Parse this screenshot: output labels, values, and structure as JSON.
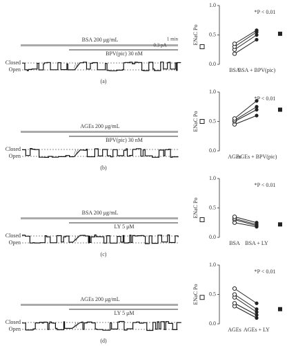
{
  "chart_data": [
    {
      "type": "paired",
      "ylabel": "ENaC Po",
      "annotation": "*P < 0.01",
      "categories": [
        "BSA",
        "BSA + BPV(pic)"
      ],
      "ylim": [
        0,
        1
      ],
      "yticks": [
        {
          "value": 0,
          "label": "0.0"
        },
        {
          "value": 0.5,
          "label": "0.5"
        },
        {
          "value": 1,
          "label": "1.0"
        }
      ],
      "series": [
        {
          "color": "#222",
          "values": [
            0.18,
            0.42
          ]
        },
        {
          "color": "#222",
          "values": [
            0.25,
            0.5
          ]
        },
        {
          "color": "#222",
          "values": [
            0.3,
            0.55
          ]
        },
        {
          "color": "#222",
          "values": [
            0.35,
            0.58
          ]
        }
      ],
      "means": [
        0.3,
        0.52
      ]
    },
    {
      "type": "paired",
      "ylabel": "ENaC Po",
      "annotation": "*P < 0.01",
      "categories": [
        "AGEs",
        "AGEs + BPV(pic)"
      ],
      "ylim": [
        0,
        1
      ],
      "yticks": [
        {
          "value": 0,
          "label": "0.0"
        },
        {
          "value": 0.5,
          "label": "0.5"
        },
        {
          "value": 1,
          "label": "1.0"
        }
      ],
      "series": [
        {
          "color": "#222",
          "values": [
            0.45,
            0.6
          ]
        },
        {
          "color": "#222",
          "values": [
            0.5,
            0.7
          ]
        },
        {
          "color": "#222",
          "values": [
            0.52,
            0.75
          ]
        },
        {
          "color": "#222",
          "values": [
            0.55,
            0.85
          ]
        }
      ],
      "means": [
        0.5,
        0.7
      ]
    },
    {
      "type": "paired",
      "ylabel": "ENaC Po",
      "annotation": "*P < 0.01",
      "categories": [
        "BSA",
        "BSA + LY"
      ],
      "ylim": [
        0,
        1
      ],
      "yticks": [
        {
          "value": 0,
          "label": "0.0"
        },
        {
          "value": 0.5,
          "label": "0.5"
        },
        {
          "value": 1,
          "label": "1.0"
        }
      ],
      "series": [
        {
          "color": "#222",
          "values": [
            0.25,
            0.18
          ]
        },
        {
          "color": "#222",
          "values": [
            0.3,
            0.2
          ]
        },
        {
          "color": "#222",
          "values": [
            0.32,
            0.22
          ]
        },
        {
          "color": "#222",
          "values": [
            0.35,
            0.25
          ]
        }
      ],
      "means": [
        0.3,
        0.22
      ]
    },
    {
      "type": "paired",
      "ylabel": "ENaC Po",
      "annotation": "*P < 0.01",
      "categories": [
        "AGEs",
        "AGEs + LY"
      ],
      "ylim": [
        0,
        1
      ],
      "yticks": [
        {
          "value": 0,
          "label": "0.0"
        },
        {
          "value": 0.5,
          "label": "0.5"
        },
        {
          "value": 1,
          "label": "1.0"
        }
      ],
      "series": [
        {
          "color": "#222",
          "values": [
            0.3,
            0.1
          ]
        },
        {
          "color": "#222",
          "values": [
            0.35,
            0.15
          ]
        },
        {
          "color": "#222",
          "values": [
            0.45,
            0.2
          ]
        },
        {
          "color": "#222",
          "values": [
            0.5,
            0.25
          ]
        },
        {
          "color": "#222",
          "values": [
            0.6,
            0.35
          ]
        }
      ],
      "means": [
        0.45,
        0.25
      ]
    }
  ],
  "traces": [
    {
      "label": "(a)",
      "treatment": "BSA 200 μg/mL",
      "drug": "BPV(pic) 30 nM",
      "scale_time": "1 min",
      "scale_current": "0.3 pA",
      "closed": "Closed",
      "open": "Open"
    },
    {
      "label": "(b)",
      "treatment": "AGEs 200 μg/mL",
      "drug": "BPV(pic) 30 nM",
      "closed": "Closed",
      "open": "Open"
    },
    {
      "label": "(c)",
      "treatment": "BSA 200 μg/mL",
      "drug": "LY 5 μM",
      "closed": "Closed",
      "open": "Open"
    },
    {
      "label": "(d)",
      "treatment": "AGEs 200 μg/mL",
      "drug": "LY 5 μM",
      "closed": "Closed",
      "open": "Open"
    }
  ]
}
